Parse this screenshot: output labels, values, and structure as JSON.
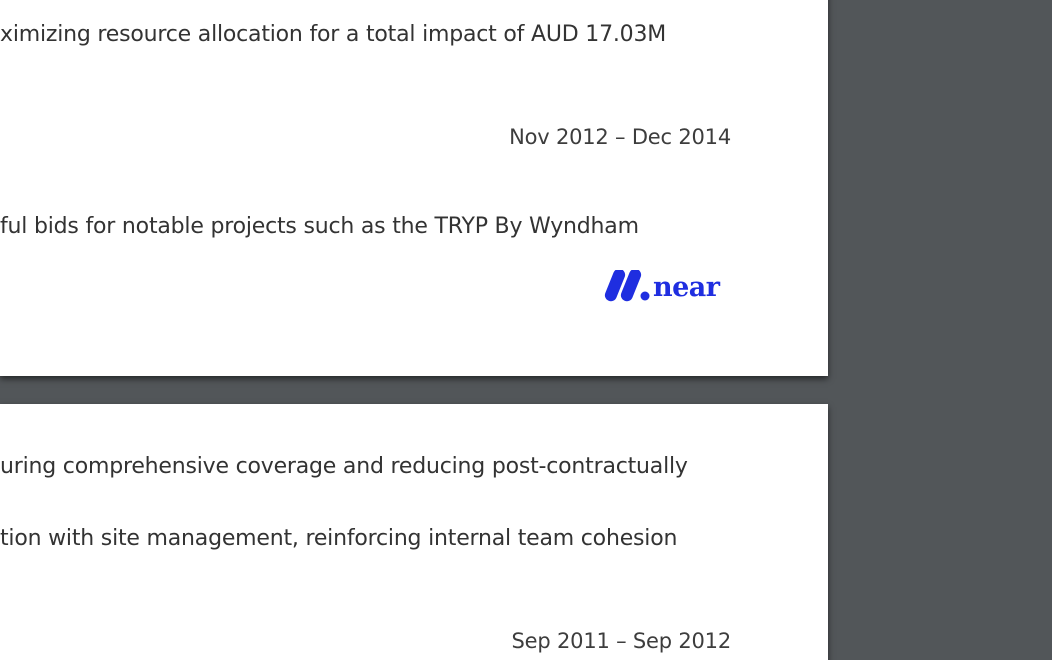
{
  "page1": {
    "line1": "ximizing resource allocation for a total impact of AUD 17.03M",
    "date": "Nov 2012 – Dec 2014",
    "line2": "ful bids for notable projects such as the TRYP By Wyndham",
    "logo_text": "near",
    "logo_color": "#1f2ee0"
  },
  "page2": {
    "line1": "uring comprehensive coverage and reducing post-contractually",
    "line2": "tion with site management, reinforcing internal team cohesion",
    "date": "Sep 2011 – Sep 2012"
  }
}
